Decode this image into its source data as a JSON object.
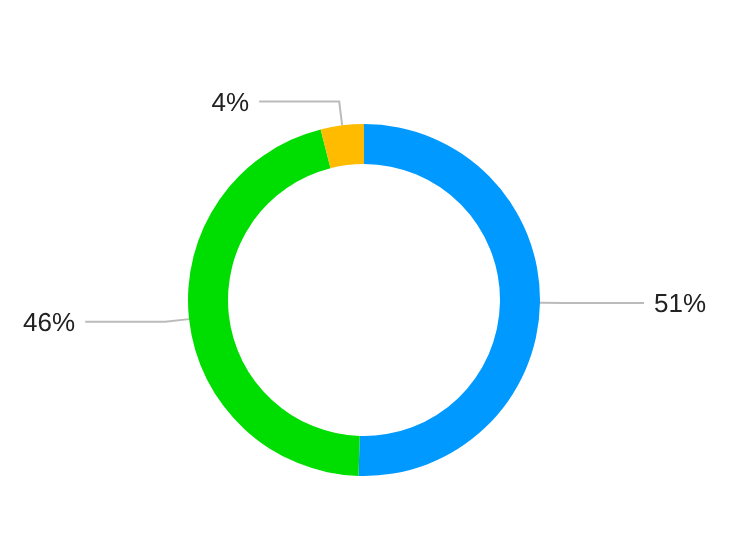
{
  "chart_data": {
    "type": "donut",
    "categories": [
      null,
      null,
      null
    ],
    "values": [
      51,
      46,
      4
    ],
    "colors": [
      "#0099ff",
      "#00dd00",
      "#ffbb00"
    ],
    "value_labels": [
      "51%",
      "46%",
      "4%"
    ]
  }
}
